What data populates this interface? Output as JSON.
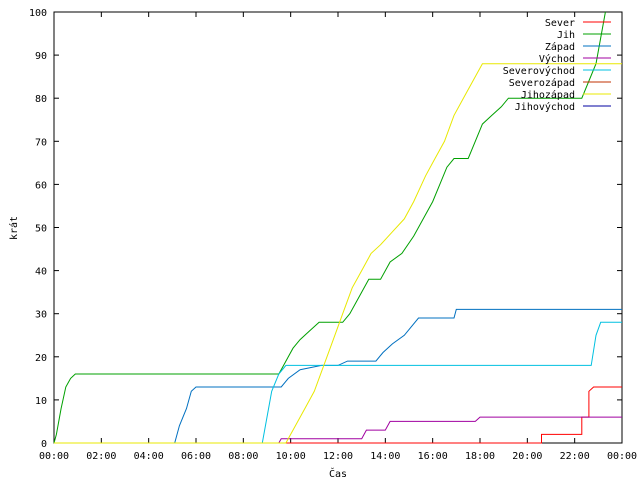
{
  "chart_data": {
    "type": "line",
    "title": "",
    "xlabel": "Čas",
    "ylabel": "krát",
    "xlim": [
      "00:00",
      "24:00"
    ],
    "ylim": [
      0,
      100
    ],
    "x_unit": "hours",
    "x_ticks": [
      "00:00",
      "02:00",
      "04:00",
      "06:00",
      "08:00",
      "10:00",
      "12:00",
      "14:00",
      "16:00",
      "18:00",
      "20:00",
      "22:00",
      "00:00"
    ],
    "y_ticks": [
      "0",
      "10",
      "20",
      "30",
      "40",
      "50",
      "60",
      "70",
      "80",
      "90",
      "100"
    ],
    "grid": false,
    "legend_position": "top-right",
    "series": [
      {
        "name": "Sever",
        "color": "#ff0000",
        "points": [
          [
            0,
            0
          ],
          [
            20.6,
            0
          ],
          [
            20.6,
            2
          ],
          [
            22.3,
            2
          ],
          [
            22.3,
            6
          ],
          [
            22.6,
            6
          ],
          [
            22.6,
            12
          ],
          [
            22.8,
            13
          ],
          [
            24,
            13
          ]
        ]
      },
      {
        "name": "Jih",
        "color": "#00a000",
        "points": [
          [
            0,
            0
          ],
          [
            0.1,
            2
          ],
          [
            0.3,
            8
          ],
          [
            0.5,
            13
          ],
          [
            0.7,
            15
          ],
          [
            0.9,
            16
          ],
          [
            9.5,
            16
          ],
          [
            9.7,
            18
          ],
          [
            9.9,
            20
          ],
          [
            10.1,
            22
          ],
          [
            10.4,
            24
          ],
          [
            10.8,
            26
          ],
          [
            11.2,
            28
          ],
          [
            12.2,
            28
          ],
          [
            12.5,
            30
          ],
          [
            12.9,
            34
          ],
          [
            13.3,
            38
          ],
          [
            13.8,
            38
          ],
          [
            14.2,
            42
          ],
          [
            14.7,
            44
          ],
          [
            15.2,
            48
          ],
          [
            15.6,
            52
          ],
          [
            16.0,
            56
          ],
          [
            16.3,
            60
          ],
          [
            16.6,
            64
          ],
          [
            16.9,
            66
          ],
          [
            17.5,
            66
          ],
          [
            17.8,
            70
          ],
          [
            18.1,
            74
          ],
          [
            18.5,
            76
          ],
          [
            18.9,
            78
          ],
          [
            19.2,
            80
          ],
          [
            20.7,
            80
          ],
          [
            21.5,
            80
          ],
          [
            22.3,
            80
          ],
          [
            22.6,
            84
          ],
          [
            22.9,
            88
          ],
          [
            23.1,
            94
          ],
          [
            23.3,
            100
          ]
        ]
      },
      {
        "name": "Západ",
        "color": "#0070c0",
        "points": [
          [
            0,
            0
          ],
          [
            5.1,
            0
          ],
          [
            5.3,
            4
          ],
          [
            5.6,
            8
          ],
          [
            5.8,
            12
          ],
          [
            6.0,
            13
          ],
          [
            9.6,
            13
          ],
          [
            9.9,
            15
          ],
          [
            10.4,
            17
          ],
          [
            11.3,
            18
          ],
          [
            12.0,
            18
          ],
          [
            12.4,
            19
          ],
          [
            13.6,
            19
          ],
          [
            13.9,
            21
          ],
          [
            14.3,
            23
          ],
          [
            14.8,
            25
          ],
          [
            15.4,
            29
          ],
          [
            16.9,
            29
          ],
          [
            17.0,
            31
          ],
          [
            24,
            31
          ]
        ]
      },
      {
        "name": "Východ",
        "color": "#a000a0",
        "points": [
          [
            0,
            0
          ],
          [
            9.5,
            0
          ],
          [
            9.6,
            1
          ],
          [
            13.0,
            1
          ],
          [
            13.2,
            3
          ],
          [
            14.0,
            3
          ],
          [
            14.2,
            5
          ],
          [
            17.8,
            5
          ],
          [
            18.0,
            6
          ],
          [
            24,
            6
          ]
        ]
      },
      {
        "name": "Severovýchod",
        "color": "#00c0e0",
        "points": [
          [
            0,
            0
          ],
          [
            8.8,
            0
          ],
          [
            9.0,
            6
          ],
          [
            9.2,
            12
          ],
          [
            9.5,
            16
          ],
          [
            9.8,
            18
          ],
          [
            22.7,
            18
          ],
          [
            22.9,
            25
          ],
          [
            23.1,
            28
          ],
          [
            24,
            28
          ]
        ]
      },
      {
        "name": "Severozápad",
        "color": "#c03000",
        "points": []
      },
      {
        "name": "Jihozápad",
        "color": "#e8e800",
        "points": [
          [
            0,
            0
          ],
          [
            9.8,
            0
          ],
          [
            10.2,
            4
          ],
          [
            10.6,
            8
          ],
          [
            11.0,
            12
          ],
          [
            11.4,
            18
          ],
          [
            11.8,
            24
          ],
          [
            12.2,
            30
          ],
          [
            12.6,
            36
          ],
          [
            13.0,
            40
          ],
          [
            13.4,
            44
          ],
          [
            13.8,
            46
          ],
          [
            14.3,
            49
          ],
          [
            14.8,
            52
          ],
          [
            15.2,
            56
          ],
          [
            15.7,
            62
          ],
          [
            16.1,
            66
          ],
          [
            16.5,
            70
          ],
          [
            16.9,
            76
          ],
          [
            17.3,
            80
          ],
          [
            17.7,
            84
          ],
          [
            18.1,
            88
          ],
          [
            24,
            88
          ]
        ]
      },
      {
        "name": "Jihovýchod",
        "color": "#0000a0",
        "points": []
      }
    ]
  }
}
